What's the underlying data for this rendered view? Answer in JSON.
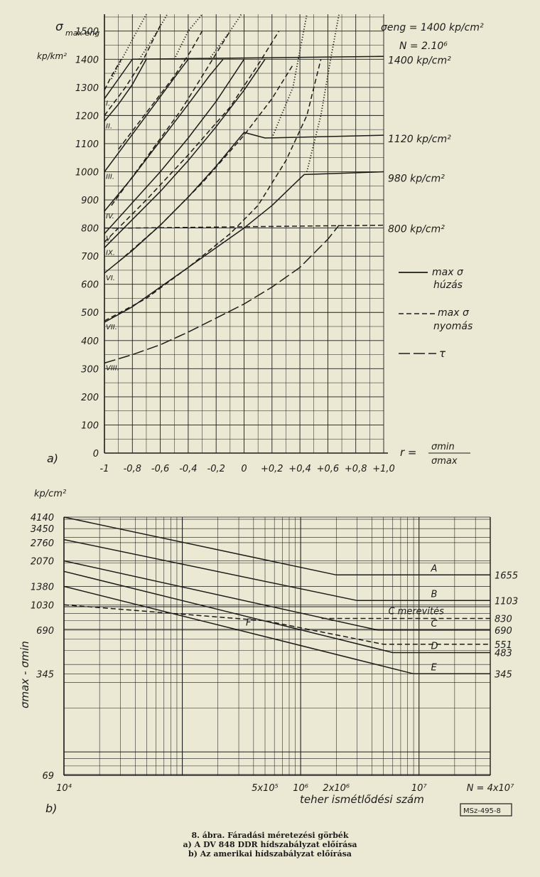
{
  "caption": {
    "title": "8. ábra. Fáradási méretezési görbék",
    "line_a": "a) A DV 848 DDR hídszabályzat előírása",
    "line_b": "b) Az amerikai hídszabályzat előírása"
  },
  "stamp": "MSz-495-8",
  "chart_data": [
    {
      "type": "line",
      "panel_label": "a)",
      "y_label_main": "σ",
      "y_label_sub": "max eng",
      "y_unit": "kp/km²",
      "x_label_prefix": "r =",
      "x_label_numerator": "σmin",
      "x_label_denominator": "σmax",
      "x_ticks": [
        -1,
        -0.8,
        -0.6,
        -0.4,
        -0.2,
        0,
        0.2,
        0.4,
        0.6,
        0.8,
        1.0
      ],
      "x_tick_labels": [
        "-1",
        "-0,8",
        "-0,6",
        "-0,4",
        "-0,2",
        "0",
        "+0,2",
        "+0,4",
        "+0,6",
        "+0,8",
        "+1,0"
      ],
      "y_ticks": [
        0,
        100,
        200,
        300,
        400,
        500,
        600,
        700,
        800,
        900,
        1000,
        1100,
        1200,
        1300,
        1400,
        1500
      ],
      "xlim": [
        -1,
        1
      ],
      "ylim": [
        0,
        1560
      ],
      "grid": true,
      "header_note_1": "σeng = 1400 kp/cm²",
      "header_note_2": "N = 2.10⁶",
      "limit_labels": [
        {
          "y": 1400,
          "label": "1400 kp/cm²"
        },
        {
          "y": 1120,
          "label": "1120 kp/cm²"
        },
        {
          "y": 980,
          "label": "980 kp/cm²"
        },
        {
          "y": 800,
          "label": "800 kp/cm²"
        }
      ],
      "legend": [
        {
          "style": "solid",
          "label": "max σ",
          "label2": "húzás"
        },
        {
          "style": "dashed",
          "label": "max σ",
          "label2": "nyomás"
        },
        {
          "style": "longdash",
          "label": "τ"
        }
      ],
      "series": [
        {
          "name": "I.",
          "style": "solid",
          "points": [
            [
              -1,
              1260
            ],
            [
              -0.9,
              1330
            ],
            [
              -0.8,
              1400
            ],
            [
              1.0,
              1410
            ]
          ]
        },
        {
          "name": "I.",
          "style": "dashed",
          "points": [
            [
              -1,
              1290
            ],
            [
              -0.95,
              1340
            ],
            [
              -0.88,
              1400
            ]
          ]
        },
        {
          "name": "I.",
          "style": "dotted",
          "points": [
            [
              -0.95,
              1330
            ],
            [
              -0.8,
              1470
            ],
            [
              -0.7,
              1560
            ]
          ]
        },
        {
          "name": "II.",
          "style": "solid",
          "points": [
            [
              -1,
              1180
            ],
            [
              -0.9,
              1240
            ],
            [
              -0.8,
              1310
            ],
            [
              -0.7,
              1400
            ]
          ]
        },
        {
          "name": "II.",
          "style": "dashed",
          "points": [
            [
              -1,
              1200
            ],
            [
              -0.85,
              1300
            ],
            [
              -0.72,
              1400
            ],
            [
              -0.6,
              1520
            ]
          ]
        },
        {
          "name": "II.",
          "style": "dotted",
          "points": [
            [
              -0.75,
              1400
            ],
            [
              -0.62,
              1500
            ],
            [
              -0.55,
              1560
            ]
          ]
        },
        {
          "name": "III.",
          "style": "solid",
          "points": [
            [
              -1,
              1000
            ],
            [
              -0.85,
              1100
            ],
            [
              -0.7,
              1200
            ],
            [
              -0.55,
              1300
            ],
            [
              -0.4,
              1400
            ]
          ]
        },
        {
          "name": "III.",
          "style": "dashed",
          "points": [
            [
              -0.9,
              1080
            ],
            [
              -0.7,
              1210
            ],
            [
              -0.5,
              1340
            ],
            [
              -0.38,
              1430
            ],
            [
              -0.3,
              1500
            ]
          ]
        },
        {
          "name": "III.",
          "style": "dotted",
          "points": [
            [
              -0.5,
              1400
            ],
            [
              -0.4,
              1500
            ],
            [
              -0.3,
              1560
            ]
          ]
        },
        {
          "name": "IV.",
          "style": "solid",
          "points": [
            [
              -1,
              860
            ],
            [
              -0.8,
              980
            ],
            [
              -0.6,
              1110
            ],
            [
              -0.4,
              1240
            ],
            [
              -0.25,
              1340
            ],
            [
              -0.15,
              1400
            ]
          ]
        },
        {
          "name": "IV.",
          "style": "dashed",
          "points": [
            [
              -0.95,
              880
            ],
            [
              -0.7,
              1050
            ],
            [
              -0.45,
              1220
            ],
            [
              -0.25,
              1380
            ],
            [
              -0.1,
              1500
            ]
          ]
        },
        {
          "name": "IV.",
          "style": "dotted",
          "points": [
            [
              -0.25,
              1400
            ],
            [
              -0.1,
              1500
            ],
            [
              -0.02,
              1560
            ]
          ]
        },
        {
          "name": "V.",
          "style": "solid",
          "points": [
            [
              -1,
              780
            ],
            [
              -0.8,
              890
            ],
            [
              -0.6,
              1000
            ],
            [
              -0.4,
              1120
            ],
            [
              -0.2,
              1250
            ],
            [
              0,
              1400
            ]
          ]
        },
        {
          "name": "V.",
          "style": "dashed",
          "points": [
            [
              -1,
              800
            ],
            [
              -0.8,
              800
            ],
            [
              1.0,
              810
            ]
          ]
        },
        {
          "name": "IX.",
          "style": "solid",
          "points": [
            [
              -1,
              730
            ],
            [
              -0.8,
              830
            ],
            [
              -0.6,
              930
            ],
            [
              -0.4,
              1040
            ],
            [
              -0.2,
              1160
            ],
            [
              0,
              1290
            ],
            [
              0.15,
              1400
            ]
          ]
        },
        {
          "name": "IX.",
          "style": "dashed",
          "points": [
            [
              -1,
              750
            ],
            [
              -0.7,
              900
            ],
            [
              -0.4,
              1060
            ],
            [
              -0.1,
              1230
            ],
            [
              0.1,
              1380
            ],
            [
              0.25,
              1500
            ]
          ]
        },
        {
          "name": "VI.",
          "style": "solid",
          "points": [
            [
              -1,
              640
            ],
            [
              -0.8,
              720
            ],
            [
              -0.6,
              810
            ],
            [
              -0.4,
              910
            ],
            [
              -0.2,
              1020
            ],
            [
              0,
              1140
            ],
            [
              0.15,
              1120
            ],
            [
              1.0,
              1130
            ]
          ]
        },
        {
          "name": "VI.",
          "style": "dashed",
          "points": [
            [
              -0.9,
              680
            ],
            [
              -0.6,
              810
            ],
            [
              -0.3,
              960
            ],
            [
              0,
              1130
            ],
            [
              0.2,
              1260
            ],
            [
              0.35,
              1380
            ]
          ]
        },
        {
          "name": "VI.",
          "style": "dotted",
          "points": [
            [
              0.2,
              1120
            ],
            [
              0.35,
              1300
            ],
            [
              0.45,
              1560
            ]
          ]
        },
        {
          "name": "VII.",
          "style": "solid",
          "points": [
            [
              -1,
              465
            ],
            [
              -0.8,
              520
            ],
            [
              -0.6,
              590
            ],
            [
              -0.4,
              660
            ],
            [
              -0.2,
              730
            ],
            [
              0,
              800
            ],
            [
              0.2,
              880
            ],
            [
              0.43,
              990
            ],
            [
              1.0,
              1000
            ]
          ]
        },
        {
          "name": "VII.",
          "style": "dashed",
          "points": [
            [
              -1,
              470
            ],
            [
              -0.7,
              550
            ],
            [
              -0.4,
              660
            ],
            [
              -0.1,
              780
            ],
            [
              0.1,
              880
            ],
            [
              0.3,
              1040
            ],
            [
              0.45,
              1200
            ],
            [
              0.55,
              1400
            ]
          ]
        },
        {
          "name": "VII.",
          "style": "dotted",
          "points": [
            [
              0.45,
              1000
            ],
            [
              0.55,
              1200
            ],
            [
              0.62,
              1400
            ],
            [
              0.68,
              1560
            ]
          ]
        },
        {
          "name": "VIII.",
          "style": "longdash",
          "points": [
            [
              -1,
              320
            ],
            [
              -0.8,
              350
            ],
            [
              -0.6,
              385
            ],
            [
              -0.4,
              430
            ],
            [
              -0.2,
              480
            ],
            [
              0,
              530
            ],
            [
              0.2,
              590
            ],
            [
              0.4,
              660
            ],
            [
              0.6,
              760
            ],
            [
              0.68,
              810
            ]
          ]
        }
      ]
    },
    {
      "type": "line",
      "panel_label": "b)",
      "log_scale": {
        "x": true,
        "y": true
      },
      "y_label": "σmax - σmin",
      "y_unit": "kp/cm²",
      "x_label": "teher ismétlődési szám",
      "x_tick_labels": [
        "10⁴",
        "5x10⁵",
        "10⁶",
        "2x10⁶",
        "10⁷",
        "N = 4x10⁷"
      ],
      "x_ticks": [
        10000,
        500000,
        1000000,
        2000000,
        10000000,
        40000000
      ],
      "y_ticks": [
        69,
        345,
        690,
        1030,
        1380,
        2070,
        2760,
        3450,
        4140
      ],
      "xlim": [
        10000,
        40000000
      ],
      "ylim": [
        69,
        4140
      ],
      "grid": true,
      "right_values": [
        "1655",
        "1103",
        "830",
        "690",
        "551",
        "483",
        "345"
      ],
      "series": [
        {
          "name": "A",
          "style": "solid",
          "points": [
            [
              10000,
              4140
            ],
            [
              2000000,
              1655
            ],
            [
              40000000,
              1655
            ]
          ]
        },
        {
          "name": "B",
          "style": "solid",
          "points": [
            [
              10000,
              2900
            ],
            [
              3000000,
              1103
            ],
            [
              40000000,
              1103
            ]
          ]
        },
        {
          "name": "C merevités",
          "style": "dashed",
          "points": [
            [
              1500000,
              830
            ],
            [
              40000000,
              830
            ]
          ]
        },
        {
          "name": "C",
          "style": "solid",
          "points": [
            [
              10000,
              2070
            ],
            [
              4500000,
              690
            ],
            [
              40000000,
              690
            ]
          ]
        },
        {
          "name": "F",
          "style": "dashed",
          "points": [
            [
              10000,
              1030
            ],
            [
              500000,
              800
            ],
            [
              5000000,
              551
            ],
            [
              40000000,
              551
            ]
          ]
        },
        {
          "name": "D",
          "style": "solid",
          "points": [
            [
              10000,
              1750
            ],
            [
              6000000,
              483
            ],
            [
              40000000,
              483
            ]
          ]
        },
        {
          "name": "E",
          "style": "solid",
          "points": [
            [
              10000,
              1380
            ],
            [
              9000000,
              345
            ],
            [
              40000000,
              345
            ]
          ]
        }
      ]
    }
  ]
}
